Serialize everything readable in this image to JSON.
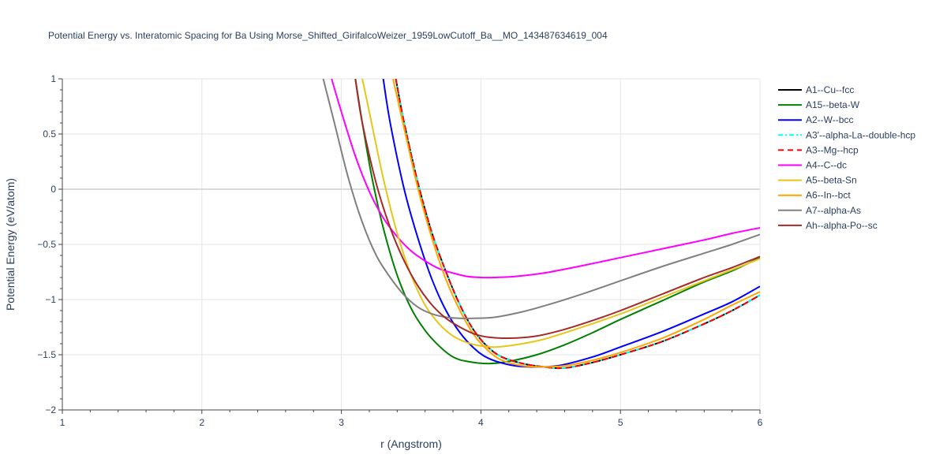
{
  "chart_data": {
    "type": "line",
    "title": "Potential Energy vs. Interatomic Spacing for Ba Using Morse_Shifted_GirifalcoWeizer_1959LowCutoff_Ba__MO_143487634619_004",
    "xlabel": "r (Angstrom)",
    "ylabel": "Potential Energy (eV/atom)",
    "xlim": [
      1,
      6
    ],
    "ylim": [
      -2,
      1
    ],
    "x_ticks": [
      "1",
      "2",
      "3",
      "4",
      "5",
      "6"
    ],
    "y_ticks": [
      "1",
      "0.5",
      "0",
      "−0.5",
      "−1",
      "−1.5",
      "−2"
    ],
    "x_tick_values": [
      1,
      2,
      3,
      4,
      5,
      6
    ],
    "y_tick_values": [
      1,
      0.5,
      0,
      -0.5,
      -1,
      -1.5,
      -2
    ],
    "grid": true,
    "legend_position": "right",
    "series": [
      {
        "name": "A1--Cu--fcc",
        "color": "#000000",
        "dash": "solid",
        "points": [
          [
            3.39,
            1.0
          ],
          [
            3.45,
            0.6
          ],
          [
            3.55,
            0.05
          ],
          [
            3.65,
            -0.4
          ],
          [
            3.75,
            -0.75
          ],
          [
            3.85,
            -1.05
          ],
          [
            3.95,
            -1.28
          ],
          [
            4.05,
            -1.43
          ],
          [
            4.15,
            -1.52
          ],
          [
            4.3,
            -1.58
          ],
          [
            4.45,
            -1.61
          ],
          [
            4.6,
            -1.62
          ],
          [
            4.8,
            -1.57
          ],
          [
            5.0,
            -1.5
          ],
          [
            5.3,
            -1.38
          ],
          [
            5.6,
            -1.22
          ],
          [
            5.8,
            -1.1
          ],
          [
            6.0,
            -0.96
          ]
        ]
      },
      {
        "name": "A15--beta-W",
        "color": "#008000",
        "dash": "solid",
        "points": [
          [
            3.1,
            1.0
          ],
          [
            3.15,
            0.6
          ],
          [
            3.22,
            0.1
          ],
          [
            3.3,
            -0.35
          ],
          [
            3.4,
            -0.78
          ],
          [
            3.5,
            -1.08
          ],
          [
            3.6,
            -1.28
          ],
          [
            3.7,
            -1.42
          ],
          [
            3.8,
            -1.52
          ],
          [
            3.9,
            -1.56
          ],
          [
            4.05,
            -1.58
          ],
          [
            4.2,
            -1.56
          ],
          [
            4.4,
            -1.5
          ],
          [
            4.6,
            -1.41
          ],
          [
            4.8,
            -1.3
          ],
          [
            5.0,
            -1.18
          ],
          [
            5.3,
            -1.01
          ],
          [
            5.6,
            -0.84
          ],
          [
            5.8,
            -0.74
          ],
          [
            6.0,
            -0.62
          ]
        ]
      },
      {
        "name": "A2--W--bcc",
        "color": "#0000ff",
        "dash": "solid",
        "points": [
          [
            3.3,
            1.0
          ],
          [
            3.35,
            0.6
          ],
          [
            3.45,
            0.0
          ],
          [
            3.55,
            -0.45
          ],
          [
            3.65,
            -0.82
          ],
          [
            3.75,
            -1.1
          ],
          [
            3.85,
            -1.3
          ],
          [
            3.95,
            -1.44
          ],
          [
            4.05,
            -1.53
          ],
          [
            4.2,
            -1.59
          ],
          [
            4.35,
            -1.61
          ],
          [
            4.55,
            -1.6
          ],
          [
            4.8,
            -1.52
          ],
          [
            5.0,
            -1.43
          ],
          [
            5.3,
            -1.29
          ],
          [
            5.6,
            -1.13
          ],
          [
            5.8,
            -1.02
          ],
          [
            6.0,
            -0.88
          ]
        ]
      },
      {
        "name": "A3'--alpha-La--double-hcp",
        "color": "#00ffff",
        "dash": "6,3,2,3",
        "points": [
          [
            3.39,
            1.0
          ],
          [
            3.45,
            0.6
          ],
          [
            3.55,
            0.05
          ],
          [
            3.65,
            -0.4
          ],
          [
            3.75,
            -0.75
          ],
          [
            3.85,
            -1.05
          ],
          [
            3.95,
            -1.28
          ],
          [
            4.05,
            -1.43
          ],
          [
            4.15,
            -1.52
          ],
          [
            4.3,
            -1.58
          ],
          [
            4.45,
            -1.61
          ],
          [
            4.6,
            -1.62
          ],
          [
            4.8,
            -1.57
          ],
          [
            5.0,
            -1.5
          ],
          [
            5.3,
            -1.38
          ],
          [
            5.6,
            -1.22
          ],
          [
            5.8,
            -1.1
          ],
          [
            6.0,
            -0.96
          ]
        ]
      },
      {
        "name": "A3--Mg--hcp",
        "color": "#ff0000",
        "dash": "7,5",
        "points": [
          [
            3.39,
            1.0
          ],
          [
            3.45,
            0.6
          ],
          [
            3.55,
            0.05
          ],
          [
            3.65,
            -0.4
          ],
          [
            3.75,
            -0.75
          ],
          [
            3.85,
            -1.05
          ],
          [
            3.95,
            -1.28
          ],
          [
            4.05,
            -1.43
          ],
          [
            4.15,
            -1.52
          ],
          [
            4.3,
            -1.58
          ],
          [
            4.45,
            -1.61
          ],
          [
            4.6,
            -1.62
          ],
          [
            4.8,
            -1.57
          ],
          [
            5.0,
            -1.5
          ],
          [
            5.3,
            -1.38
          ],
          [
            5.6,
            -1.22
          ],
          [
            5.8,
            -1.1
          ],
          [
            6.0,
            -0.96
          ]
        ]
      },
      {
        "name": "A4--C--dc",
        "color": "#ff00ff",
        "dash": "solid",
        "points": [
          [
            2.93,
            1.0
          ],
          [
            3.0,
            0.7
          ],
          [
            3.1,
            0.3
          ],
          [
            3.2,
            -0.02
          ],
          [
            3.3,
            -0.26
          ],
          [
            3.4,
            -0.43
          ],
          [
            3.5,
            -0.56
          ],
          [
            3.6,
            -0.65
          ],
          [
            3.7,
            -0.72
          ],
          [
            3.8,
            -0.76
          ],
          [
            3.9,
            -0.79
          ],
          [
            4.0,
            -0.8
          ],
          [
            4.1,
            -0.8
          ],
          [
            4.25,
            -0.79
          ],
          [
            4.45,
            -0.76
          ],
          [
            4.7,
            -0.7
          ],
          [
            5.0,
            -0.62
          ],
          [
            5.3,
            -0.54
          ],
          [
            5.6,
            -0.46
          ],
          [
            5.8,
            -0.4
          ],
          [
            6.0,
            -0.35
          ]
        ]
      },
      {
        "name": "A5--beta-Sn",
        "color": "#e6c619",
        "dash": "solid",
        "points": [
          [
            3.15,
            1.0
          ],
          [
            3.2,
            0.7
          ],
          [
            3.3,
            0.1
          ],
          [
            3.4,
            -0.4
          ],
          [
            3.5,
            -0.78
          ],
          [
            3.6,
            -1.05
          ],
          [
            3.7,
            -1.22
          ],
          [
            3.8,
            -1.33
          ],
          [
            3.9,
            -1.39
          ],
          [
            4.0,
            -1.42
          ],
          [
            4.1,
            -1.43
          ],
          [
            4.25,
            -1.41
          ],
          [
            4.45,
            -1.36
          ],
          [
            4.7,
            -1.26
          ],
          [
            5.0,
            -1.13
          ],
          [
            5.3,
            -0.98
          ],
          [
            5.6,
            -0.83
          ],
          [
            5.8,
            -0.73
          ],
          [
            6.0,
            -0.63
          ]
        ]
      },
      {
        "name": "A6--In--bct",
        "color": "#ffa500",
        "dash": "solid",
        "points": [
          [
            3.37,
            1.0
          ],
          [
            3.45,
            0.55
          ],
          [
            3.55,
            0.0
          ],
          [
            3.65,
            -0.45
          ],
          [
            3.75,
            -0.82
          ],
          [
            3.85,
            -1.1
          ],
          [
            3.95,
            -1.32
          ],
          [
            4.05,
            -1.46
          ],
          [
            4.15,
            -1.55
          ],
          [
            4.3,
            -1.6
          ],
          [
            4.45,
            -1.61
          ],
          [
            4.6,
            -1.6
          ],
          [
            4.8,
            -1.55
          ],
          [
            5.0,
            -1.48
          ],
          [
            5.3,
            -1.35
          ],
          [
            5.6,
            -1.18
          ],
          [
            5.8,
            -1.05
          ],
          [
            6.0,
            -0.93
          ]
        ]
      },
      {
        "name": "A7--alpha-As",
        "color": "#808080",
        "dash": "solid",
        "points": [
          [
            2.87,
            1.0
          ],
          [
            2.95,
            0.6
          ],
          [
            3.05,
            0.1
          ],
          [
            3.15,
            -0.3
          ],
          [
            3.25,
            -0.6
          ],
          [
            3.35,
            -0.8
          ],
          [
            3.45,
            -0.96
          ],
          [
            3.55,
            -1.07
          ],
          [
            3.65,
            -1.13
          ],
          [
            3.75,
            -1.16
          ],
          [
            3.85,
            -1.17
          ],
          [
            3.95,
            -1.17
          ],
          [
            4.1,
            -1.16
          ],
          [
            4.3,
            -1.11
          ],
          [
            4.5,
            -1.04
          ],
          [
            4.75,
            -0.94
          ],
          [
            5.0,
            -0.83
          ],
          [
            5.3,
            -0.7
          ],
          [
            5.6,
            -0.58
          ],
          [
            5.8,
            -0.5
          ],
          [
            6.0,
            -0.41
          ]
        ]
      },
      {
        "name": "Ah--alpha-Po--sc",
        "color": "#a52a2a",
        "dash": "solid",
        "points": [
          [
            3.1,
            1.0
          ],
          [
            3.15,
            0.6
          ],
          [
            3.25,
            0.05
          ],
          [
            3.35,
            -0.35
          ],
          [
            3.45,
            -0.65
          ],
          [
            3.55,
            -0.88
          ],
          [
            3.65,
            -1.05
          ],
          [
            3.75,
            -1.17
          ],
          [
            3.85,
            -1.25
          ],
          [
            3.95,
            -1.31
          ],
          [
            4.05,
            -1.34
          ],
          [
            4.2,
            -1.35
          ],
          [
            4.4,
            -1.33
          ],
          [
            4.6,
            -1.27
          ],
          [
            4.8,
            -1.19
          ],
          [
            5.0,
            -1.1
          ],
          [
            5.3,
            -0.95
          ],
          [
            5.6,
            -0.8
          ],
          [
            5.8,
            -0.71
          ],
          [
            6.0,
            -0.61
          ]
        ]
      }
    ]
  }
}
